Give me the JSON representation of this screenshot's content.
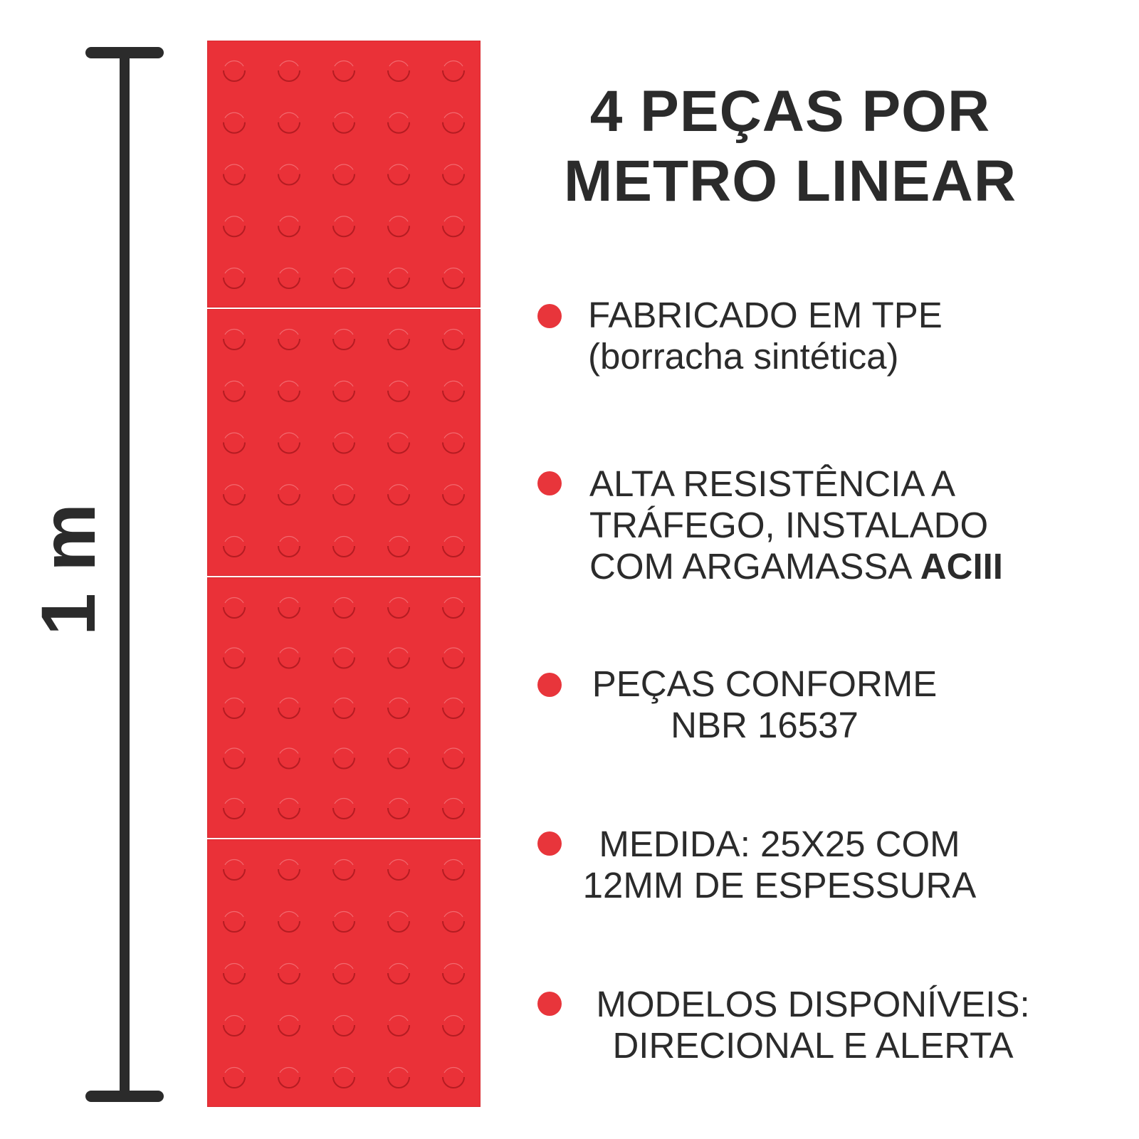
{
  "colors": {
    "tile": "#ea3138",
    "bullet": "#e8353b",
    "text": "#2b2b2b",
    "scale_bar": "#2b2b2b"
  },
  "scale": {
    "label": "1 m"
  },
  "tiles": {
    "count": 4,
    "rows_per_tile": 5,
    "cols_per_tile": 5
  },
  "title": {
    "line1": "4 PEÇAS POR",
    "line2": "METRO LINEAR"
  },
  "features": [
    {
      "line1": "FABRICADO EM TPE",
      "line2": "(borracha sintética)"
    },
    {
      "line1": "ALTA RESISTÊNCIA A",
      "line2": "TRÁFEGO, INSTALADO",
      "line3_prefix": "COM ARGAMASSA ",
      "line3_bold": "ACIII"
    },
    {
      "line1": "PEÇAS CONFORME",
      "line2": "NBR 16537"
    },
    {
      "line1": "MEDIDA: 25X25 COM",
      "line2": "12MM DE ESPESSURA"
    },
    {
      "line1": "MODELOS DISPONÍVEIS:",
      "line2": "DIRECIONAL E ALERTA"
    }
  ]
}
